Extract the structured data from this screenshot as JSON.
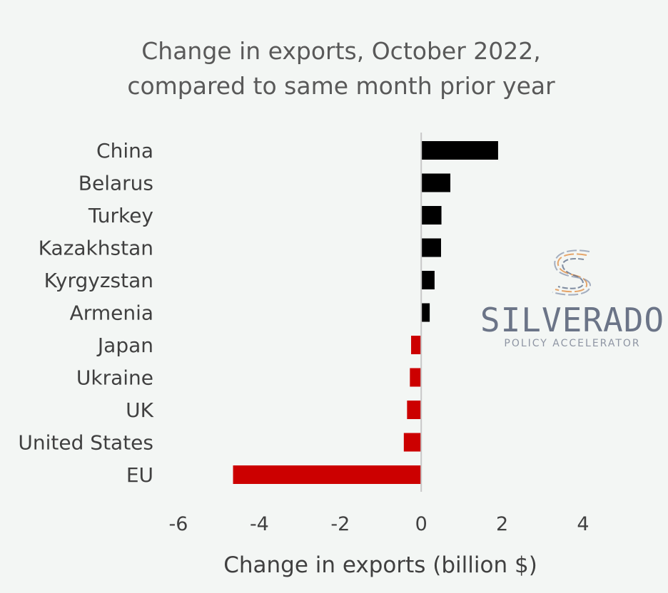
{
  "chart_data": {
    "type": "bar",
    "orientation": "horizontal",
    "title_lines": [
      "Change in exports, October 2022,",
      "compared to same month prior year"
    ],
    "categories": [
      "China",
      "Belarus",
      "Turkey",
      "Kazakhstan",
      "Kyrgyzstan",
      "Armenia",
      "Japan",
      "Ukraine",
      "UK",
      "United States",
      "EU"
    ],
    "values": [
      1.9,
      0.72,
      0.5,
      0.49,
      0.33,
      0.21,
      -0.25,
      -0.28,
      -0.35,
      -0.43,
      -4.65
    ],
    "xlabel": "Change in exports (billion $)",
    "xlim": [
      -6,
      4
    ],
    "xticks": [
      -6,
      -4,
      -2,
      0,
      2,
      4
    ],
    "grid": false,
    "colors": {
      "positive": "#000000",
      "negative": "#cc0000",
      "axis": "#c8c8c8"
    }
  },
  "watermark": {
    "name": "SILVERADO",
    "tagline": "POLICY ACCELERATOR",
    "colors": [
      "#e08a3c",
      "#5a6a86",
      "#8a96ad"
    ]
  }
}
